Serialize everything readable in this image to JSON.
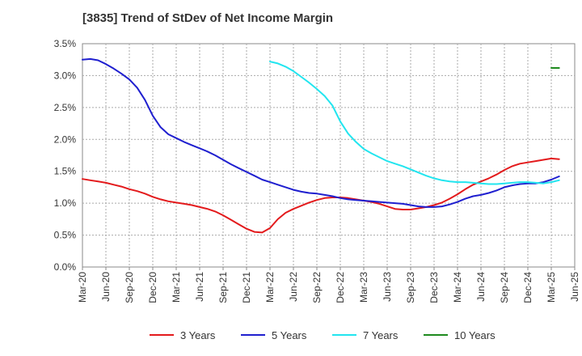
{
  "chart_data": {
    "type": "line",
    "title": "[3835]  Trend of StDev of Net Income Margin",
    "xlabel": "",
    "ylabel": "",
    "x_ticks": [
      "Mar-20",
      "Jun-20",
      "Sep-20",
      "Dec-20",
      "Mar-21",
      "Jun-21",
      "Sep-21",
      "Dec-21",
      "Mar-22",
      "Jun-22",
      "Sep-22",
      "Dec-22",
      "Mar-23",
      "Jun-23",
      "Sep-23",
      "Dec-23",
      "Mar-24",
      "Jun-24",
      "Sep-24",
      "Dec-24",
      "Mar-25",
      "Jun-25"
    ],
    "y_ticks": [
      "0.0%",
      "0.5%",
      "1.0%",
      "1.5%",
      "2.0%",
      "2.5%",
      "3.0%",
      "3.5%"
    ],
    "ylim": [
      0,
      3.5
    ],
    "grid": true,
    "legend_position": "bottom",
    "series": [
      {
        "name": "3 Years",
        "color": "#e31a1c",
        "x": [
          "Mar-20",
          "Apr-20",
          "May-20",
          "Jun-20",
          "Jul-20",
          "Aug-20",
          "Sep-20",
          "Oct-20",
          "Nov-20",
          "Dec-20",
          "Jan-21",
          "Feb-21",
          "Mar-21",
          "Apr-21",
          "May-21",
          "Jun-21",
          "Jul-21",
          "Aug-21",
          "Sep-21",
          "Oct-21",
          "Nov-21",
          "Dec-21",
          "Jan-22",
          "Feb-22",
          "Mar-22",
          "Apr-22",
          "May-22",
          "Jun-22",
          "Jul-22",
          "Aug-22",
          "Sep-22",
          "Oct-22",
          "Nov-22",
          "Dec-22",
          "Jan-23",
          "Feb-23",
          "Mar-23",
          "Apr-23",
          "May-23",
          "Jun-23",
          "Jul-23",
          "Aug-23",
          "Sep-23",
          "Oct-23",
          "Nov-23",
          "Dec-23",
          "Jan-24",
          "Feb-24",
          "Mar-24",
          "Apr-24",
          "May-24",
          "Jun-24",
          "Jul-24",
          "Aug-24",
          "Sep-24",
          "Oct-24",
          "Nov-24",
          "Dec-24",
          "Jan-25",
          "Feb-25",
          "Mar-25",
          "Apr-25"
        ],
        "values": [
          1.38,
          1.36,
          1.34,
          1.32,
          1.29,
          1.26,
          1.22,
          1.19,
          1.15,
          1.1,
          1.06,
          1.03,
          1.01,
          0.99,
          0.97,
          0.94,
          0.91,
          0.87,
          0.81,
          0.74,
          0.67,
          0.6,
          0.55,
          0.54,
          0.61,
          0.75,
          0.85,
          0.91,
          0.96,
          1.01,
          1.05,
          1.08,
          1.09,
          1.09,
          1.08,
          1.06,
          1.04,
          1.02,
          0.99,
          0.95,
          0.91,
          0.9,
          0.9,
          0.92,
          0.94,
          0.97,
          1.01,
          1.07,
          1.14,
          1.22,
          1.29,
          1.34,
          1.39,
          1.45,
          1.52,
          1.58,
          1.62,
          1.64,
          1.66,
          1.68,
          1.7,
          1.69
        ]
      },
      {
        "name": "5 Years",
        "color": "#1f1fcf",
        "x": [
          "Mar-20",
          "Apr-20",
          "May-20",
          "Jun-20",
          "Jul-20",
          "Aug-20",
          "Sep-20",
          "Oct-20",
          "Nov-20",
          "Dec-20",
          "Jan-21",
          "Feb-21",
          "Mar-21",
          "Apr-21",
          "May-21",
          "Jun-21",
          "Jul-21",
          "Aug-21",
          "Sep-21",
          "Oct-21",
          "Nov-21",
          "Dec-21",
          "Jan-22",
          "Feb-22",
          "Mar-22",
          "Apr-22",
          "May-22",
          "Jun-22",
          "Jul-22",
          "Aug-22",
          "Sep-22",
          "Oct-22",
          "Nov-22",
          "Dec-22",
          "Jan-23",
          "Feb-23",
          "Mar-23",
          "Apr-23",
          "May-23",
          "Jun-23",
          "Jul-23",
          "Aug-23",
          "Sep-23",
          "Oct-23",
          "Nov-23",
          "Dec-23",
          "Jan-24",
          "Feb-24",
          "Mar-24",
          "Apr-24",
          "May-24",
          "Jun-24",
          "Jul-24",
          "Aug-24",
          "Sep-24",
          "Oct-24",
          "Nov-24",
          "Dec-24",
          "Jan-25",
          "Feb-25",
          "Mar-25",
          "Apr-25"
        ],
        "values": [
          3.25,
          3.26,
          3.24,
          3.18,
          3.11,
          3.03,
          2.94,
          2.81,
          2.62,
          2.37,
          2.19,
          2.08,
          2.02,
          1.96,
          1.91,
          1.86,
          1.81,
          1.75,
          1.68,
          1.61,
          1.55,
          1.49,
          1.43,
          1.37,
          1.33,
          1.29,
          1.25,
          1.21,
          1.18,
          1.16,
          1.15,
          1.13,
          1.11,
          1.08,
          1.06,
          1.05,
          1.04,
          1.03,
          1.02,
          1.01,
          1.0,
          0.99,
          0.97,
          0.95,
          0.94,
          0.94,
          0.95,
          0.98,
          1.02,
          1.07,
          1.11,
          1.13,
          1.16,
          1.2,
          1.25,
          1.28,
          1.3,
          1.31,
          1.31,
          1.33,
          1.37,
          1.42
        ]
      },
      {
        "name": "7 Years",
        "color": "#22e5ef",
        "x": [
          "Mar-22",
          "Apr-22",
          "May-22",
          "Jun-22",
          "Jul-22",
          "Aug-22",
          "Sep-22",
          "Oct-22",
          "Nov-22",
          "Dec-22",
          "Jan-23",
          "Feb-23",
          "Mar-23",
          "Apr-23",
          "May-23",
          "Jun-23",
          "Jul-23",
          "Aug-23",
          "Sep-23",
          "Oct-23",
          "Nov-23",
          "Dec-23",
          "Jan-24",
          "Feb-24",
          "Mar-24",
          "Apr-24",
          "May-24",
          "Jun-24",
          "Jul-24",
          "Aug-24",
          "Sep-24",
          "Oct-24",
          "Nov-24",
          "Dec-24",
          "Jan-25",
          "Feb-25",
          "Mar-25",
          "Apr-25"
        ],
        "values": [
          3.22,
          3.19,
          3.14,
          3.07,
          2.98,
          2.89,
          2.79,
          2.68,
          2.53,
          2.28,
          2.09,
          1.96,
          1.85,
          1.78,
          1.72,
          1.66,
          1.62,
          1.58,
          1.53,
          1.48,
          1.43,
          1.39,
          1.36,
          1.34,
          1.33,
          1.33,
          1.32,
          1.31,
          1.3,
          1.3,
          1.31,
          1.32,
          1.33,
          1.33,
          1.32,
          1.31,
          1.33,
          1.36
        ]
      },
      {
        "name": "10 Years",
        "color": "#1e8a1e",
        "x": [
          "Mar-25",
          "Apr-25"
        ],
        "values": [
          3.12,
          3.12
        ]
      }
    ]
  }
}
